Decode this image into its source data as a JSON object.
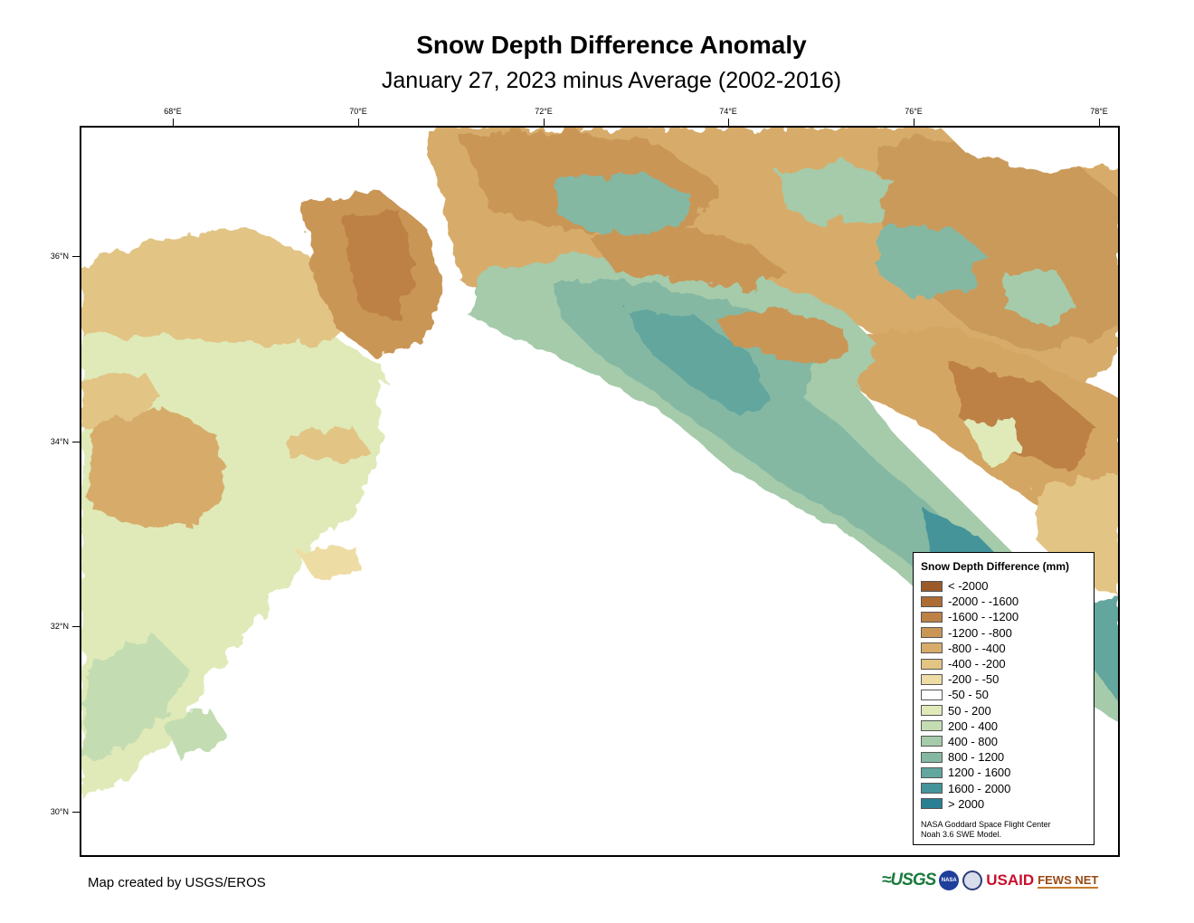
{
  "title": "Snow Depth Difference Anomaly",
  "subtitle": "January 27, 2023 minus Average (2002-2016)",
  "map": {
    "longitude_labels": [
      "68°E",
      "70°E",
      "72°E",
      "74°E",
      "76°E",
      "78°E"
    ],
    "latitude_labels": [
      "36°N",
      "34°N",
      "32°N",
      "30°N"
    ]
  },
  "legend": {
    "title": "Snow Depth Difference (mm)",
    "classes": [
      {
        "label": "< -2000",
        "color": "#9c5a28"
      },
      {
        "label": "-2000 - -1600",
        "color": "#ae6c35"
      },
      {
        "label": "-1600 - -1200",
        "color": "#bd8045"
      },
      {
        "label": "-1200 - -800",
        "color": "#c99656"
      },
      {
        "label": "-800 - -400",
        "color": "#d7ac6b"
      },
      {
        "label": "-400 - -200",
        "color": "#e2c485"
      },
      {
        "label": "-200 - -50",
        "color": "#eedca5"
      },
      {
        "label": "-50 - 50",
        "color": "#ffffff"
      },
      {
        "label": "50 - 200",
        "color": "#dfeab8"
      },
      {
        "label": "200 - 400",
        "color": "#c4dcb2"
      },
      {
        "label": "400 - 800",
        "color": "#a5cbaa"
      },
      {
        "label": "800 - 1200",
        "color": "#84b8a3"
      },
      {
        "label": "1200 - 1600",
        "color": "#62a69e"
      },
      {
        "label": "1600 - 2000",
        "color": "#45949a"
      },
      {
        "label": "> 2000",
        "color": "#2a7f93"
      }
    ],
    "credit_line_1": "NASA Goddard Space Flight Center",
    "credit_line_2": "Noah 3.6 SWE Model."
  },
  "footer": "Map created by USGS/EROS",
  "logos": {
    "usgs": "≈USGS",
    "nasa": "NASA",
    "usaid": "USAID",
    "fews": "FEWS NET"
  }
}
